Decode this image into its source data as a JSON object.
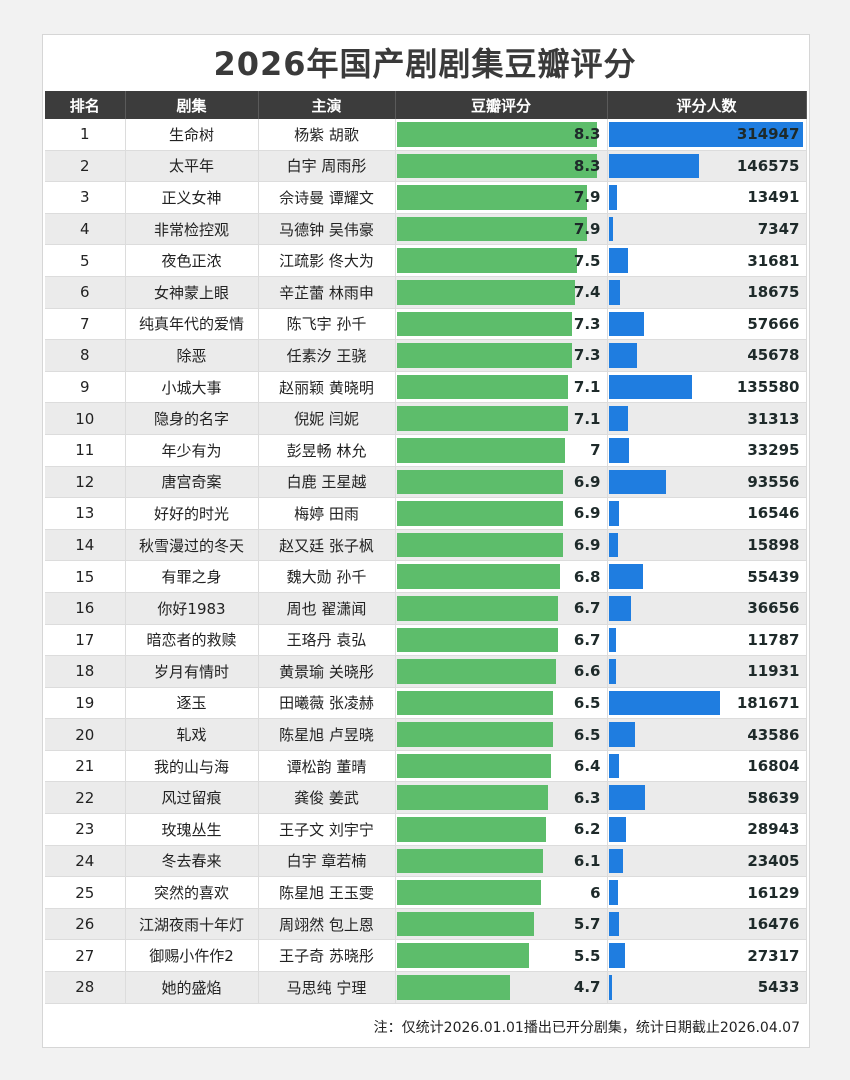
{
  "title": "2026年国产剧剧集豆瓣评分",
  "headers": {
    "rank": "排名",
    "drama": "剧集",
    "cast": "主演",
    "score": "豆瓣评分",
    "votes": "评分人数"
  },
  "note": "注：仅统计2026.01.01播出已开分剧集，统计日期截止2026.04.07",
  "colors": {
    "score_bar": "#5dbd6b",
    "votes_bar": "#1f7de0",
    "header_bg": "#3c3c3c"
  },
  "chart_data": {
    "type": "table",
    "columns": [
      "排名",
      "剧集",
      "主演",
      "豆瓣评分",
      "评分人数"
    ],
    "score_scale_max": 8.3,
    "votes_scale_max": 314947,
    "rows": [
      {
        "rank": "1",
        "drama": "生命树",
        "cast": "杨紫 胡歌",
        "score": "8.3",
        "votes": "314947"
      },
      {
        "rank": "2",
        "drama": "太平年",
        "cast": "白宇 周雨彤",
        "score": "8.3",
        "votes": "146575"
      },
      {
        "rank": "3",
        "drama": "正义女神",
        "cast": "佘诗曼 谭耀文",
        "score": "7.9",
        "votes": "13491"
      },
      {
        "rank": "4",
        "drama": "非常检控观",
        "cast": "马德钟 吴伟豪",
        "score": "7.9",
        "votes": "7347"
      },
      {
        "rank": "5",
        "drama": "夜色正浓",
        "cast": "江疏影 佟大为",
        "score": "7.5",
        "votes": "31681"
      },
      {
        "rank": "6",
        "drama": "女神蒙上眼",
        "cast": "辛芷蕾 林雨申",
        "score": "7.4",
        "votes": "18675"
      },
      {
        "rank": "7",
        "drama": "纯真年代的爱情",
        "cast": "陈飞宇 孙千",
        "score": "7.3",
        "votes": "57666"
      },
      {
        "rank": "8",
        "drama": "除恶",
        "cast": "任素汐 王骁",
        "score": "7.3",
        "votes": "45678"
      },
      {
        "rank": "9",
        "drama": "小城大事",
        "cast": "赵丽颖 黄晓明",
        "score": "7.1",
        "votes": "135580"
      },
      {
        "rank": "10",
        "drama": "隐身的名字",
        "cast": "倪妮 闫妮",
        "score": "7.1",
        "votes": "31313"
      },
      {
        "rank": "11",
        "drama": "年少有为",
        "cast": "彭昱畅 林允",
        "score": "7",
        "votes": "33295"
      },
      {
        "rank": "12",
        "drama": "唐宫奇案",
        "cast": "白鹿 王星越",
        "score": "6.9",
        "votes": "93556"
      },
      {
        "rank": "13",
        "drama": "好好的时光",
        "cast": "梅婷 田雨",
        "score": "6.9",
        "votes": "16546"
      },
      {
        "rank": "14",
        "drama": "秋雪漫过的冬天",
        "cast": "赵又廷 张子枫",
        "score": "6.9",
        "votes": "15898"
      },
      {
        "rank": "15",
        "drama": "有罪之身",
        "cast": "魏大勋 孙千",
        "score": "6.8",
        "votes": "55439"
      },
      {
        "rank": "16",
        "drama": "你好1983",
        "cast": "周也 翟潇闻",
        "score": "6.7",
        "votes": "36656"
      },
      {
        "rank": "17",
        "drama": "暗恋者的救赎",
        "cast": "王珞丹 袁弘",
        "score": "6.7",
        "votes": "11787"
      },
      {
        "rank": "18",
        "drama": "岁月有情时",
        "cast": "黄景瑜 关晓彤",
        "score": "6.6",
        "votes": "11931"
      },
      {
        "rank": "19",
        "drama": "逐玉",
        "cast": "田曦薇 张凌赫",
        "score": "6.5",
        "votes": "181671"
      },
      {
        "rank": "20",
        "drama": "轧戏",
        "cast": "陈星旭 卢昱晓",
        "score": "6.5",
        "votes": "43586"
      },
      {
        "rank": "21",
        "drama": "我的山与海",
        "cast": "谭松韵 董晴",
        "score": "6.4",
        "votes": "16804"
      },
      {
        "rank": "22",
        "drama": "风过留痕",
        "cast": "龚俊 姜武",
        "score": "6.3",
        "votes": "58639"
      },
      {
        "rank": "23",
        "drama": "玫瑰丛生",
        "cast": "王子文 刘宇宁",
        "score": "6.2",
        "votes": "28943"
      },
      {
        "rank": "24",
        "drama": "冬去春来",
        "cast": "白宇 章若楠",
        "score": "6.1",
        "votes": "23405"
      },
      {
        "rank": "25",
        "drama": "突然的喜欢",
        "cast": "陈星旭 王玉雯",
        "score": "6",
        "votes": "16129"
      },
      {
        "rank": "26",
        "drama": "江湖夜雨十年灯",
        "cast": "周翊然 包上恩",
        "score": "5.7",
        "votes": "16476"
      },
      {
        "rank": "27",
        "drama": "御赐小仵作2",
        "cast": "王子奇 苏晓彤",
        "score": "5.5",
        "votes": "27317"
      },
      {
        "rank": "28",
        "drama": "她的盛焰",
        "cast": "马思纯 宁理",
        "score": "4.7",
        "votes": "5433"
      }
    ]
  }
}
